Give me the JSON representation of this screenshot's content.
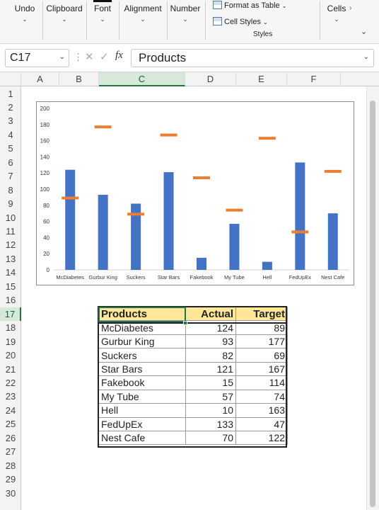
{
  "ribbon": {
    "groups": [
      {
        "label": "Undo"
      },
      {
        "label": "Clipboard"
      },
      {
        "label": "Font"
      },
      {
        "label": "Alignment"
      },
      {
        "label": "Number"
      },
      {
        "label": "Cells"
      }
    ],
    "styles": {
      "format_as_table": "Format as Table",
      "cell_styles": "Cell Styles",
      "group_label": "Styles"
    }
  },
  "formula_bar": {
    "name_box": "C17",
    "content": "Products",
    "fx": "fx"
  },
  "columns": [
    "A",
    "B",
    "C",
    "D",
    "E",
    "F"
  ],
  "selected_column": "C",
  "rows": [
    "1",
    "2",
    "3",
    "4",
    "5",
    "6",
    "7",
    "8",
    "9",
    "10",
    "11",
    "12",
    "13",
    "14",
    "15",
    "16",
    "17",
    "18",
    "19",
    "20",
    "21",
    "22",
    "23",
    "24",
    "25",
    "26",
    "27",
    "28",
    "29",
    "30"
  ],
  "selected_row": "17",
  "table": {
    "headers": [
      "Products",
      "Actual",
      "Target"
    ],
    "rows": [
      [
        "McDiabetes",
        "124",
        "89"
      ],
      [
        "Gurbur King",
        "93",
        "177"
      ],
      [
        "Suckers",
        "82",
        "69"
      ],
      [
        "Star Bars",
        "121",
        "167"
      ],
      [
        "Fakebook",
        "15",
        "114"
      ],
      [
        "My Tube",
        "57",
        "74"
      ],
      [
        "Hell",
        "10",
        "163"
      ],
      [
        "FedUpEx",
        "133",
        "47"
      ],
      [
        "Nest Cafe",
        "70",
        "122"
      ]
    ]
  },
  "chart_data": {
    "type": "bar",
    "categories": [
      "McDiabetes",
      "Gurbur King",
      "Suckers",
      "Star Bars",
      "Fakebook",
      "My Tube",
      "Hell",
      "FedUpEx",
      "Nest Cafe"
    ],
    "series": [
      {
        "values": [
          124,
          93,
          82,
          121,
          15,
          57,
          10,
          133,
          70
        ],
        "color": "#4472c4",
        "style": "column"
      },
      {
        "values": [
          89,
          177,
          69,
          167,
          114,
          74,
          163,
          47,
          122
        ],
        "color": "#ed7d31",
        "style": "marker-dash"
      }
    ],
    "ylim": [
      0,
      200
    ],
    "yticks": [
      "0",
      "20",
      "40",
      "60",
      "80",
      "100",
      "120",
      "140",
      "160",
      "180",
      "200"
    ],
    "grid": false,
    "legend": "none"
  },
  "icons": {
    "dropdown": "chevron-down-icon",
    "cancel": "cancel-icon",
    "enter": "checkmark-icon",
    "function": "fx-icon"
  }
}
